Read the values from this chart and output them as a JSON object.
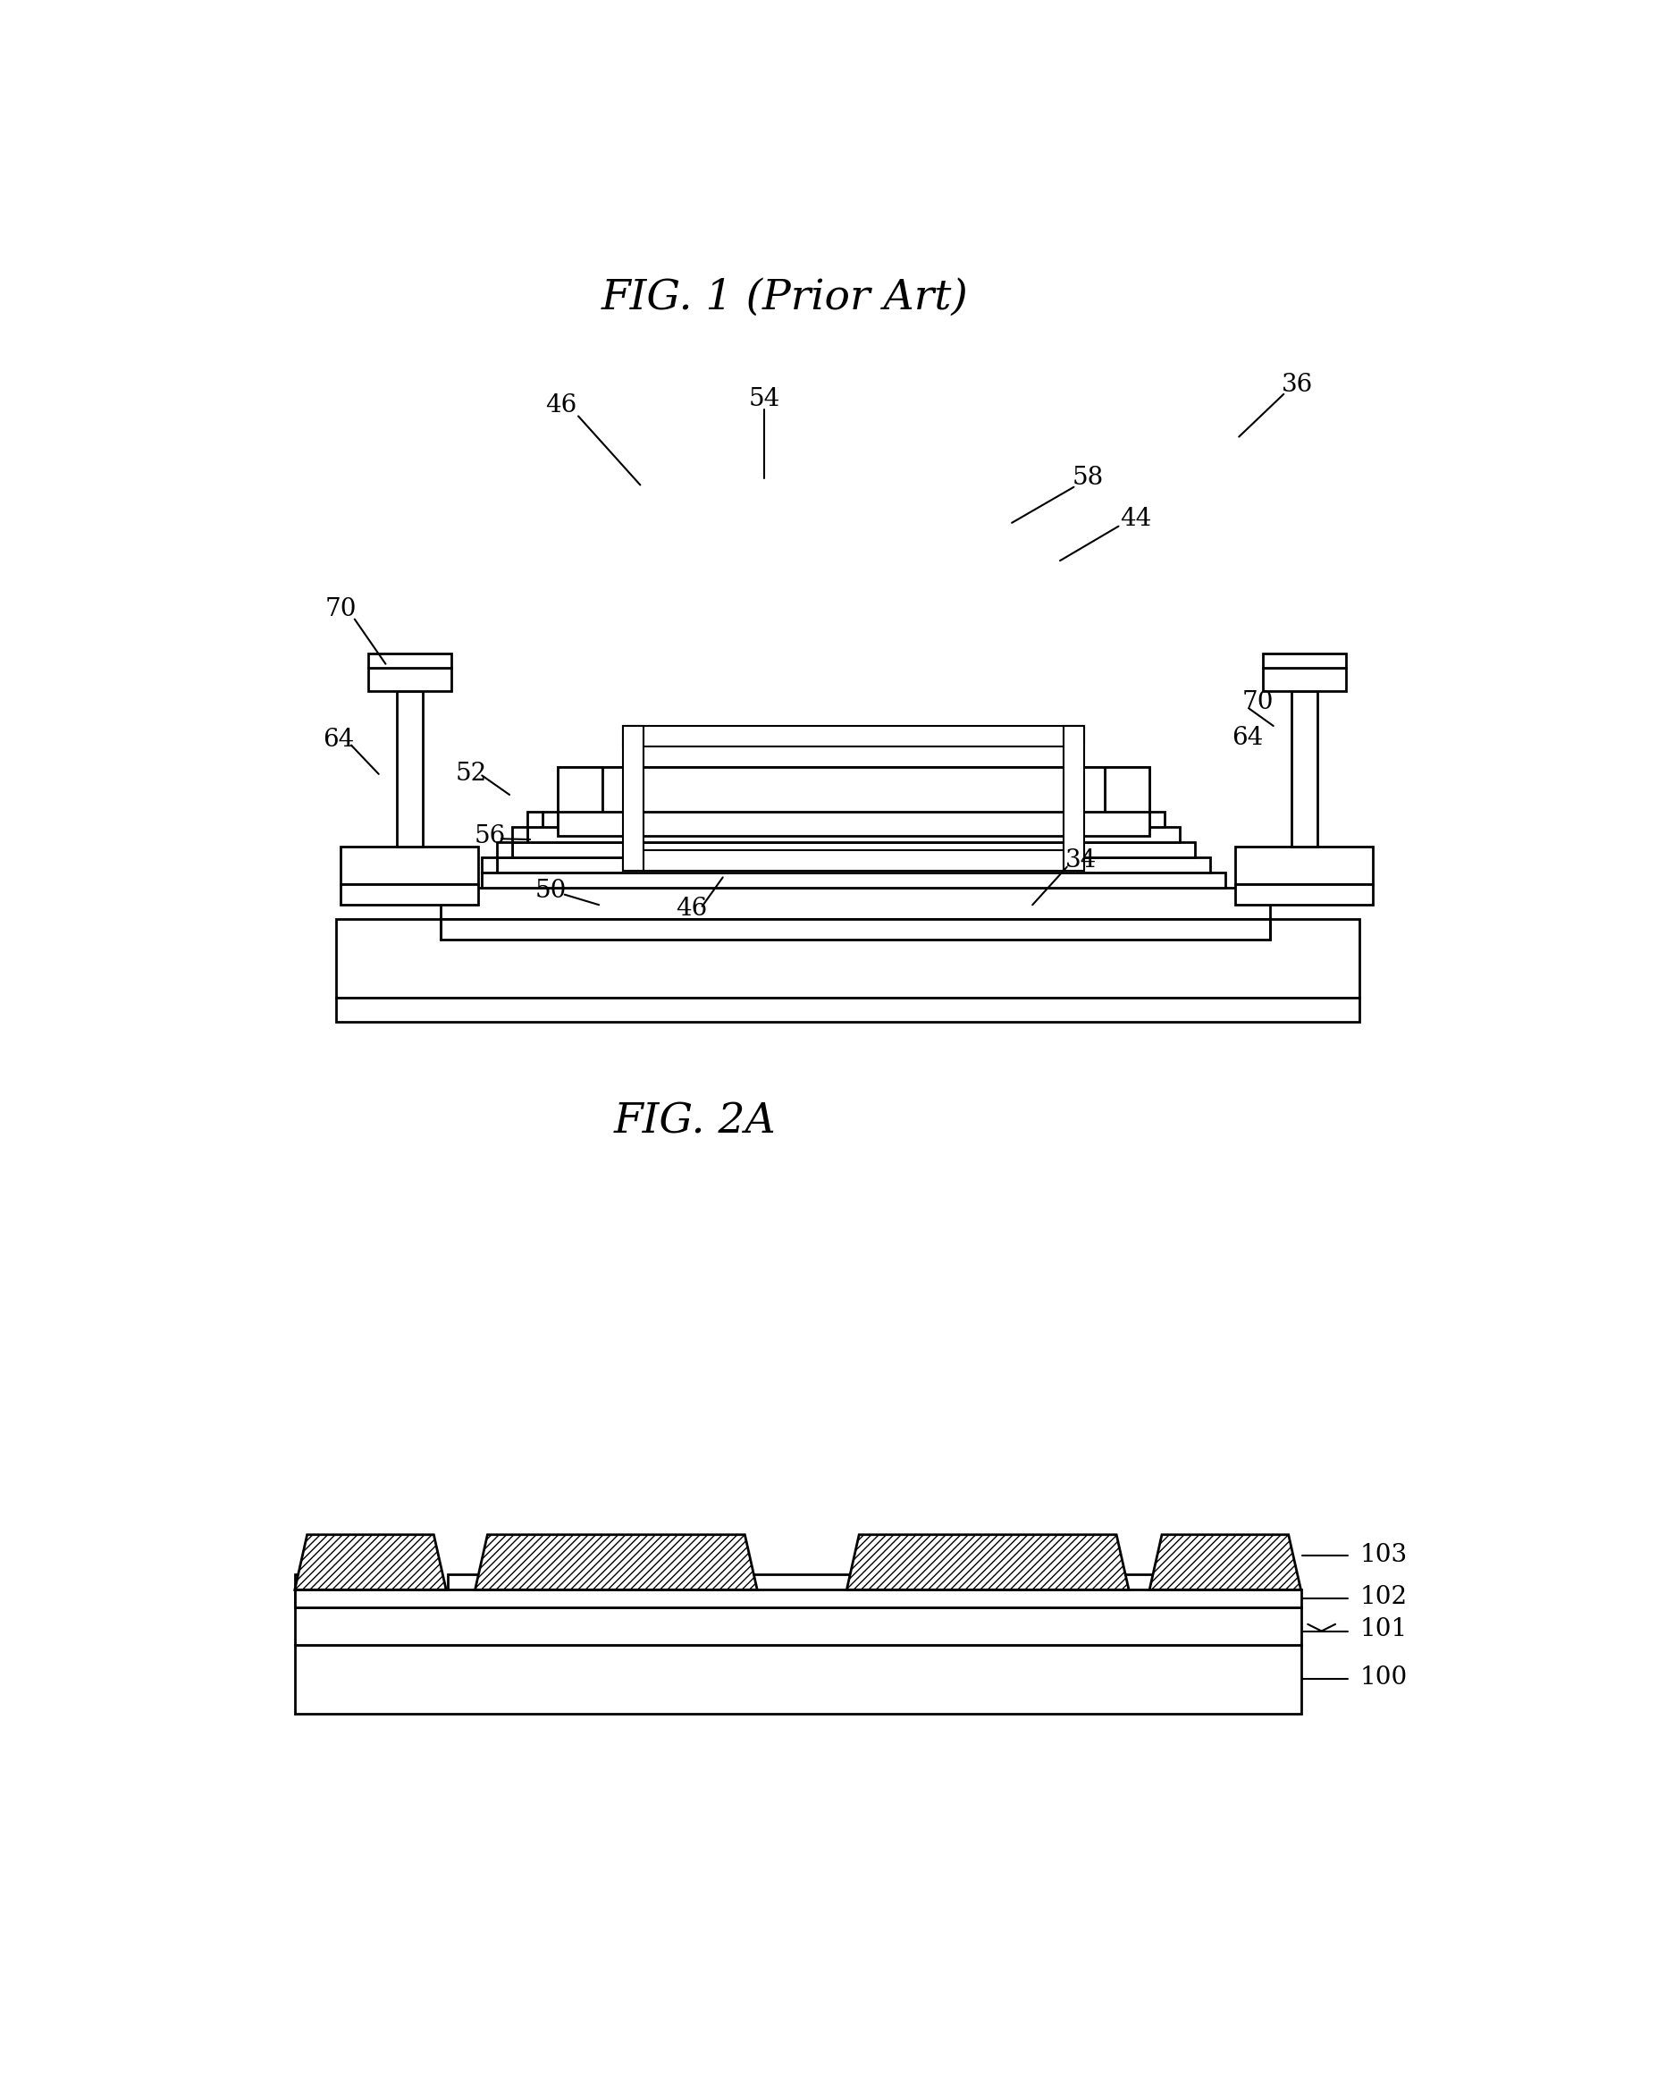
{
  "fig1_title": "FIG. 1 (Prior Art)",
  "fig2a_title": "FIG. 2A",
  "background": "#ffffff",
  "line_color": "#000000"
}
